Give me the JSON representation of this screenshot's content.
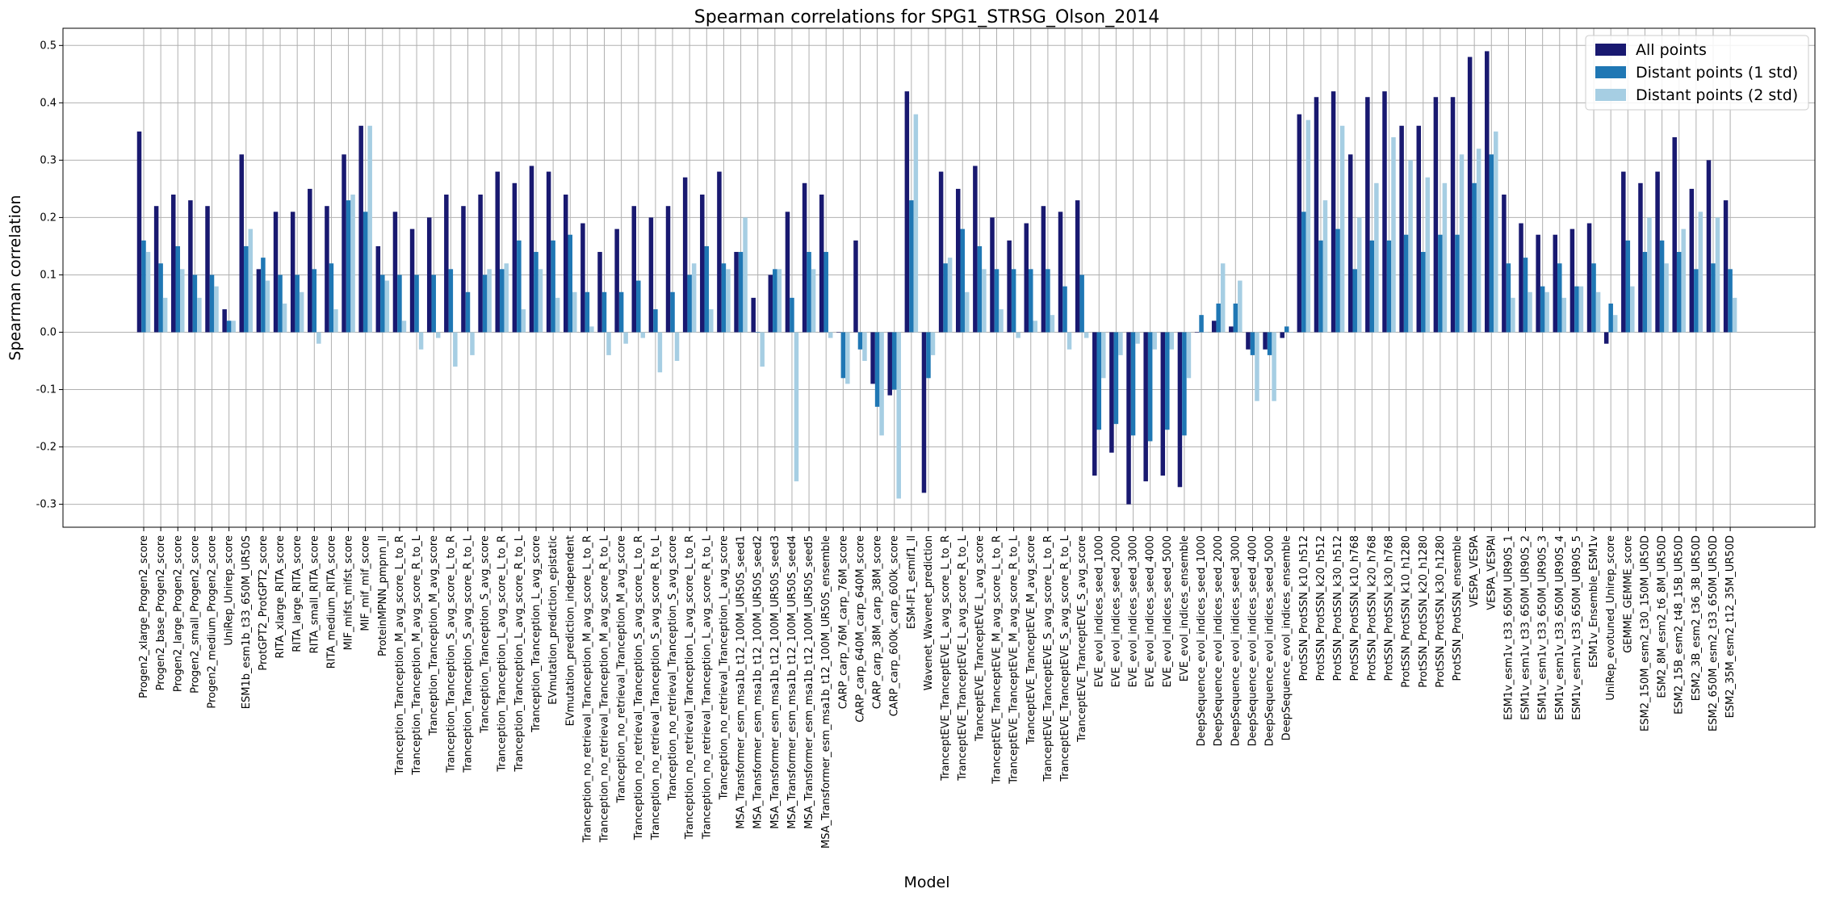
{
  "chart_data": {
    "type": "bar",
    "title": "Spearman correlations for SPG1_STRSG_Olson_2014",
    "xlabel": "Model",
    "ylabel": "Spearman correlation",
    "ylim": [
      -0.34,
      0.53
    ],
    "yticks": [
      "-0.3",
      "-0.2",
      "-0.1",
      "0.0",
      "0.1",
      "0.2",
      "0.3",
      "0.4",
      "0.5"
    ],
    "grid": true,
    "legend_position": "top-right",
    "categories": [
      "Progen2_xlarge_Progen2_score",
      "Progen2_base_Progen2_score",
      "Progen2_large_Progen2_score",
      "Progen2_small_Progen2_score",
      "Progen2_medium_Progen2_score",
      "UniRep_Unirep_score",
      "ESM1b_esm1b_t33_650M_UR50S",
      "ProtGPT2_ProtGPT2_score",
      "RITA_xlarge_RITA_score",
      "RITA_large_RITA_score",
      "RITA_small_RITA_score",
      "RITA_medium_RITA_score",
      "MIF_mifst_mifst_score",
      "MIF_mif_mif_score",
      "ProteinMPNN_pmpnn_ll",
      "Tranception_Tranception_M_avg_score_L_to_R",
      "Tranception_Tranception_M_avg_score_R_to_L",
      "Tranception_Tranception_M_avg_score",
      "Tranception_Tranception_S_avg_score_L_to_R",
      "Tranception_Tranception_S_avg_score_R_to_L",
      "Tranception_Tranception_S_avg_score",
      "Tranception_Tranception_L_avg_score_L_to_R",
      "Tranception_Tranception_L_avg_score_R_to_L",
      "Tranception_Tranception_L_avg_score",
      "EVmutation_prediction_epistatic",
      "EVmutation_prediction_independent",
      "Tranception_no_retrieval_Tranception_M_avg_score_L_to_R",
      "Tranception_no_retrieval_Tranception_M_avg_score_R_to_L",
      "Tranception_no_retrieval_Tranception_M_avg_score",
      "Tranception_no_retrieval_Tranception_S_avg_score_L_to_R",
      "Tranception_no_retrieval_Tranception_S_avg_score_R_to_L",
      "Tranception_no_retrieval_Tranception_S_avg_score",
      "Tranception_no_retrieval_Tranception_L_avg_score_L_to_R",
      "Tranception_no_retrieval_Tranception_L_avg_score_R_to_L",
      "Tranception_no_retrieval_Tranception_L_avg_score",
      "MSA_Transformer_esm_msa1b_t12_100M_UR50S_seed1",
      "MSA_Transformer_esm_msa1b_t12_100M_UR50S_seed2",
      "MSA_Transformer_esm_msa1b_t12_100M_UR50S_seed3",
      "MSA_Transformer_esm_msa1b_t12_100M_UR50S_seed4",
      "MSA_Transformer_esm_msa1b_t12_100M_UR50S_seed5",
      "MSA_Transformer_esm_msa1b_t12_100M_UR50S_ensemble",
      "CARP_carp_76M_carp_76M_score",
      "CARP_carp_640M_carp_640M_score",
      "CARP_carp_38M_carp_38M_score",
      "CARP_carp_600k_carp_600k_score",
      "ESM-IF1_esmif1_ll",
      "Wavenet_Wavenet_prediction",
      "TranceptEVE_TranceptEVE_L_avg_score_L_to_R",
      "TranceptEVE_TranceptEVE_L_avg_score_R_to_L",
      "TranceptEVE_TranceptEVE_L_avg_score",
      "TranceptEVE_TranceptEVE_M_avg_score_L_to_R",
      "TranceptEVE_TranceptEVE_M_avg_score_R_to_L",
      "TranceptEVE_TranceptEVE_M_avg_score",
      "TranceptEVE_TranceptEVE_S_avg_score_L_to_R",
      "TranceptEVE_TranceptEVE_S_avg_score_R_to_L",
      "TranceptEVE_TranceptEVE_S_avg_score",
      "EVE_evol_indices_seed_1000",
      "EVE_evol_indices_seed_2000",
      "EVE_evol_indices_seed_3000",
      "EVE_evol_indices_seed_4000",
      "EVE_evol_indices_seed_5000",
      "EVE_evol_indices_ensemble",
      "DeepSequence_evol_indices_seed_1000",
      "DeepSequence_evol_indices_seed_2000",
      "DeepSequence_evol_indices_seed_3000",
      "DeepSequence_evol_indices_seed_4000",
      "DeepSequence_evol_indices_seed_5000",
      "DeepSequence_evol_indices_ensemble",
      "ProtSSN_ProtSSN_k10_h512",
      "ProtSSN_ProtSSN_k20_h512",
      "ProtSSN_ProtSSN_k30_h512",
      "ProtSSN_ProtSSN_k10_h768",
      "ProtSSN_ProtSSN_k20_h768",
      "ProtSSN_ProtSSN_k30_h768",
      "ProtSSN_ProtSSN_k10_h1280",
      "ProtSSN_ProtSSN_k20_h1280",
      "ProtSSN_ProtSSN_k30_h1280",
      "ProtSSN_ProtSSN_ensemble",
      "VESPA_VESPA",
      "VESPA_VESPAl",
      "ESM1v_esm1v_t33_650M_UR90S_1",
      "ESM1v_esm1v_t33_650M_UR90S_2",
      "ESM1v_esm1v_t33_650M_UR90S_3",
      "ESM1v_esm1v_t33_650M_UR90S_4",
      "ESM1v_esm1v_t33_650M_UR90S_5",
      "ESM1v_Ensemble_ESM1v",
      "UniRep_evotuned_Unirep_score",
      "GEMME_GEMME_score",
      "ESM2_150M_esm2_t30_150M_UR50D",
      "ESM2_8M_esm2_t6_8M_UR50D",
      "ESM2_15B_esm2_t48_15B_UR50D",
      "ESM2_3B_esm2_t36_3B_UR50D",
      "ESM2_650M_esm2_t33_650M_UR50D",
      "ESM2_35M_esm2_t12_35M_UR50D"
    ],
    "series": [
      {
        "name": "All points",
        "color": "#191970",
        "values": [
          0.35,
          0.22,
          0.24,
          0.23,
          0.22,
          0.04,
          0.31,
          0.11,
          0.21,
          0.21,
          0.25,
          0.22,
          0.31,
          0.36,
          0.15,
          0.21,
          0.18,
          0.2,
          0.24,
          0.22,
          0.24,
          0.28,
          0.26,
          0.29,
          0.28,
          0.24,
          0.19,
          0.14,
          0.18,
          0.22,
          0.2,
          0.22,
          0.27,
          0.24,
          0.28,
          0.14,
          0.06,
          0.1,
          0.21,
          0.26,
          0.24,
          0.0,
          0.16,
          -0.09,
          -0.11,
          0.42,
          -0.28,
          0.28,
          0.25,
          0.29,
          0.2,
          0.16,
          0.19,
          0.22,
          0.21,
          0.23,
          -0.25,
          -0.21,
          -0.3,
          -0.26,
          -0.25,
          -0.27,
          0.0,
          0.02,
          0.01,
          -0.03,
          -0.03,
          -0.01,
          0.38,
          0.41,
          0.42,
          0.31,
          0.41,
          0.42,
          0.36,
          0.36,
          0.41,
          0.41,
          0.48,
          0.49,
          0.24,
          0.19,
          0.17,
          0.17,
          0.18,
          0.19,
          -0.02,
          0.28,
          0.26,
          0.28,
          0.34,
          0.25,
          0.3,
          0.23
        ]
      },
      {
        "name": "Distant points (1 std)",
        "color": "#1f77b4",
        "values": [
          0.16,
          0.12,
          0.15,
          0.1,
          0.1,
          0.02,
          0.15,
          0.13,
          0.1,
          0.1,
          0.11,
          0.12,
          0.23,
          0.21,
          0.1,
          0.1,
          0.1,
          0.1,
          0.11,
          0.07,
          0.1,
          0.11,
          0.16,
          0.14,
          0.16,
          0.17,
          0.07,
          0.07,
          0.07,
          0.09,
          0.04,
          0.07,
          0.1,
          0.15,
          0.12,
          0.14,
          0.0,
          0.11,
          0.06,
          0.14,
          0.14,
          -0.08,
          -0.03,
          -0.13,
          -0.1,
          0.23,
          -0.08,
          0.12,
          0.18,
          0.15,
          0.11,
          0.11,
          0.11,
          0.11,
          0.08,
          0.1,
          -0.17,
          -0.16,
          -0.18,
          -0.19,
          -0.17,
          -0.18,
          0.03,
          0.05,
          0.05,
          -0.04,
          -0.04,
          0.01,
          0.21,
          0.16,
          0.18,
          0.11,
          0.16,
          0.16,
          0.17,
          0.14,
          0.17,
          0.17,
          0.26,
          0.31,
          0.12,
          0.13,
          0.08,
          0.12,
          0.08,
          0.12,
          0.05,
          0.16,
          0.14,
          0.16,
          0.14,
          0.11,
          0.12,
          0.11
        ]
      },
      {
        "name": "Distant points (2 std)",
        "color": "#a6cee3",
        "values": [
          0.14,
          0.06,
          0.11,
          0.06,
          0.08,
          0.02,
          0.18,
          0.09,
          0.05,
          0.07,
          -0.02,
          0.04,
          0.24,
          0.36,
          0.09,
          0.02,
          -0.03,
          -0.01,
          -0.06,
          -0.04,
          0.11,
          0.12,
          0.04,
          0.11,
          0.06,
          0.07,
          0.01,
          -0.04,
          -0.02,
          -0.01,
          -0.07,
          -0.05,
          0.12,
          0.04,
          0.11,
          0.2,
          -0.06,
          0.11,
          -0.26,
          0.11,
          -0.01,
          -0.09,
          -0.05,
          -0.18,
          -0.29,
          0.38,
          -0.04,
          0.13,
          0.07,
          0.11,
          0.04,
          -0.01,
          0.02,
          0.03,
          -0.03,
          -0.01,
          -0.08,
          -0.04,
          -0.02,
          -0.03,
          -0.03,
          -0.08,
          0.0,
          0.12,
          0.09,
          -0.12,
          -0.12,
          0.0,
          0.37,
          0.23,
          0.36,
          0.2,
          0.26,
          0.34,
          0.3,
          0.27,
          0.26,
          0.31,
          0.32,
          0.35,
          0.06,
          0.07,
          0.07,
          0.06,
          0.08,
          0.07,
          0.03,
          0.08,
          0.2,
          0.12,
          0.18,
          0.21,
          0.2,
          0.06
        ]
      }
    ]
  }
}
